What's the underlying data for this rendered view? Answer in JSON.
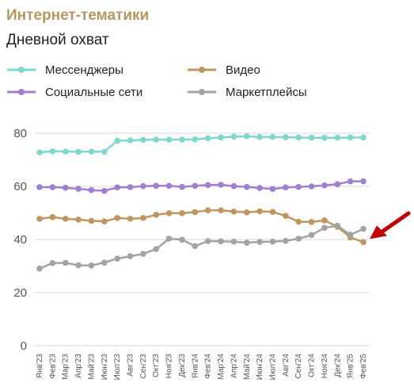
{
  "header": {
    "title": "Интернет-тематики",
    "subtitle": "Дневной охват"
  },
  "colors": {
    "title": "#b8965f",
    "arrow": "#c00000",
    "grid": "#d9d9d9"
  },
  "annotation": {
    "type": "arrow",
    "color": "#c00000",
    "points_to": "Фев'25"
  },
  "chart_data": {
    "type": "line",
    "categories": [
      "Янв'23",
      "Фев'23",
      "Мар'23",
      "Апр'23",
      "Май'23",
      "Июн'23",
      "Июл'23",
      "Авг'23",
      "Сен'23",
      "Окт'23",
      "Ноя'23",
      "Дек'23",
      "Янв'24",
      "Фев'24",
      "Мар'24",
      "Апр'24",
      "Май'24",
      "Июн'24",
      "Июл'24",
      "Авг'24",
      "Сен'24",
      "Окт'24",
      "Ноя'24",
      "Дек'24",
      "Янв'25",
      "Фев'25"
    ],
    "ylim": [
      0,
      85
    ],
    "yticks": [
      0,
      20,
      40,
      60,
      80
    ],
    "grid": true,
    "legend_position": "top",
    "series": [
      {
        "name": "Мессенджеры",
        "color": "#7fd8d0",
        "values": [
          72.8,
          73.2,
          73.1,
          73.0,
          73.1,
          73.0,
          77.2,
          77.3,
          77.5,
          77.6,
          77.6,
          77.6,
          77.7,
          78.1,
          78.4,
          78.7,
          78.9,
          78.6,
          78.6,
          78.5,
          78.4,
          78.3,
          78.3,
          78.3,
          78.4,
          78.4
        ]
      },
      {
        "name": "Видео",
        "color": "#bf9660",
        "values": [
          47.8,
          48.4,
          47.8,
          47.5,
          47.0,
          46.8,
          48.1,
          47.8,
          48.1,
          49.3,
          49.9,
          49.9,
          50.3,
          51.0,
          51.0,
          50.5,
          50.2,
          50.6,
          50.4,
          48.9,
          46.7,
          46.6,
          47.2,
          44.8,
          40.8,
          39.0
        ]
      },
      {
        "name": "Социальные сети",
        "color": "#a27dd1",
        "values": [
          59.7,
          59.7,
          59.5,
          59.1,
          58.6,
          58.3,
          59.6,
          59.7,
          60.1,
          60.2,
          60.2,
          59.8,
          60.2,
          60.5,
          60.6,
          60.1,
          59.8,
          59.4,
          59.0,
          59.6,
          59.8,
          60.0,
          60.4,
          60.8,
          61.9,
          61.9
        ]
      },
      {
        "name": "Маркетплейсы",
        "color": "#a3a3a3",
        "values": [
          29.1,
          31.1,
          31.2,
          30.3,
          30.2,
          31.3,
          32.8,
          33.7,
          34.6,
          36.4,
          40.3,
          39.9,
          37.5,
          39.4,
          39.3,
          39.2,
          38.8,
          39.1,
          39.2,
          39.5,
          40.3,
          41.7,
          44.4,
          45.2,
          41.8,
          44.0
        ]
      }
    ]
  }
}
